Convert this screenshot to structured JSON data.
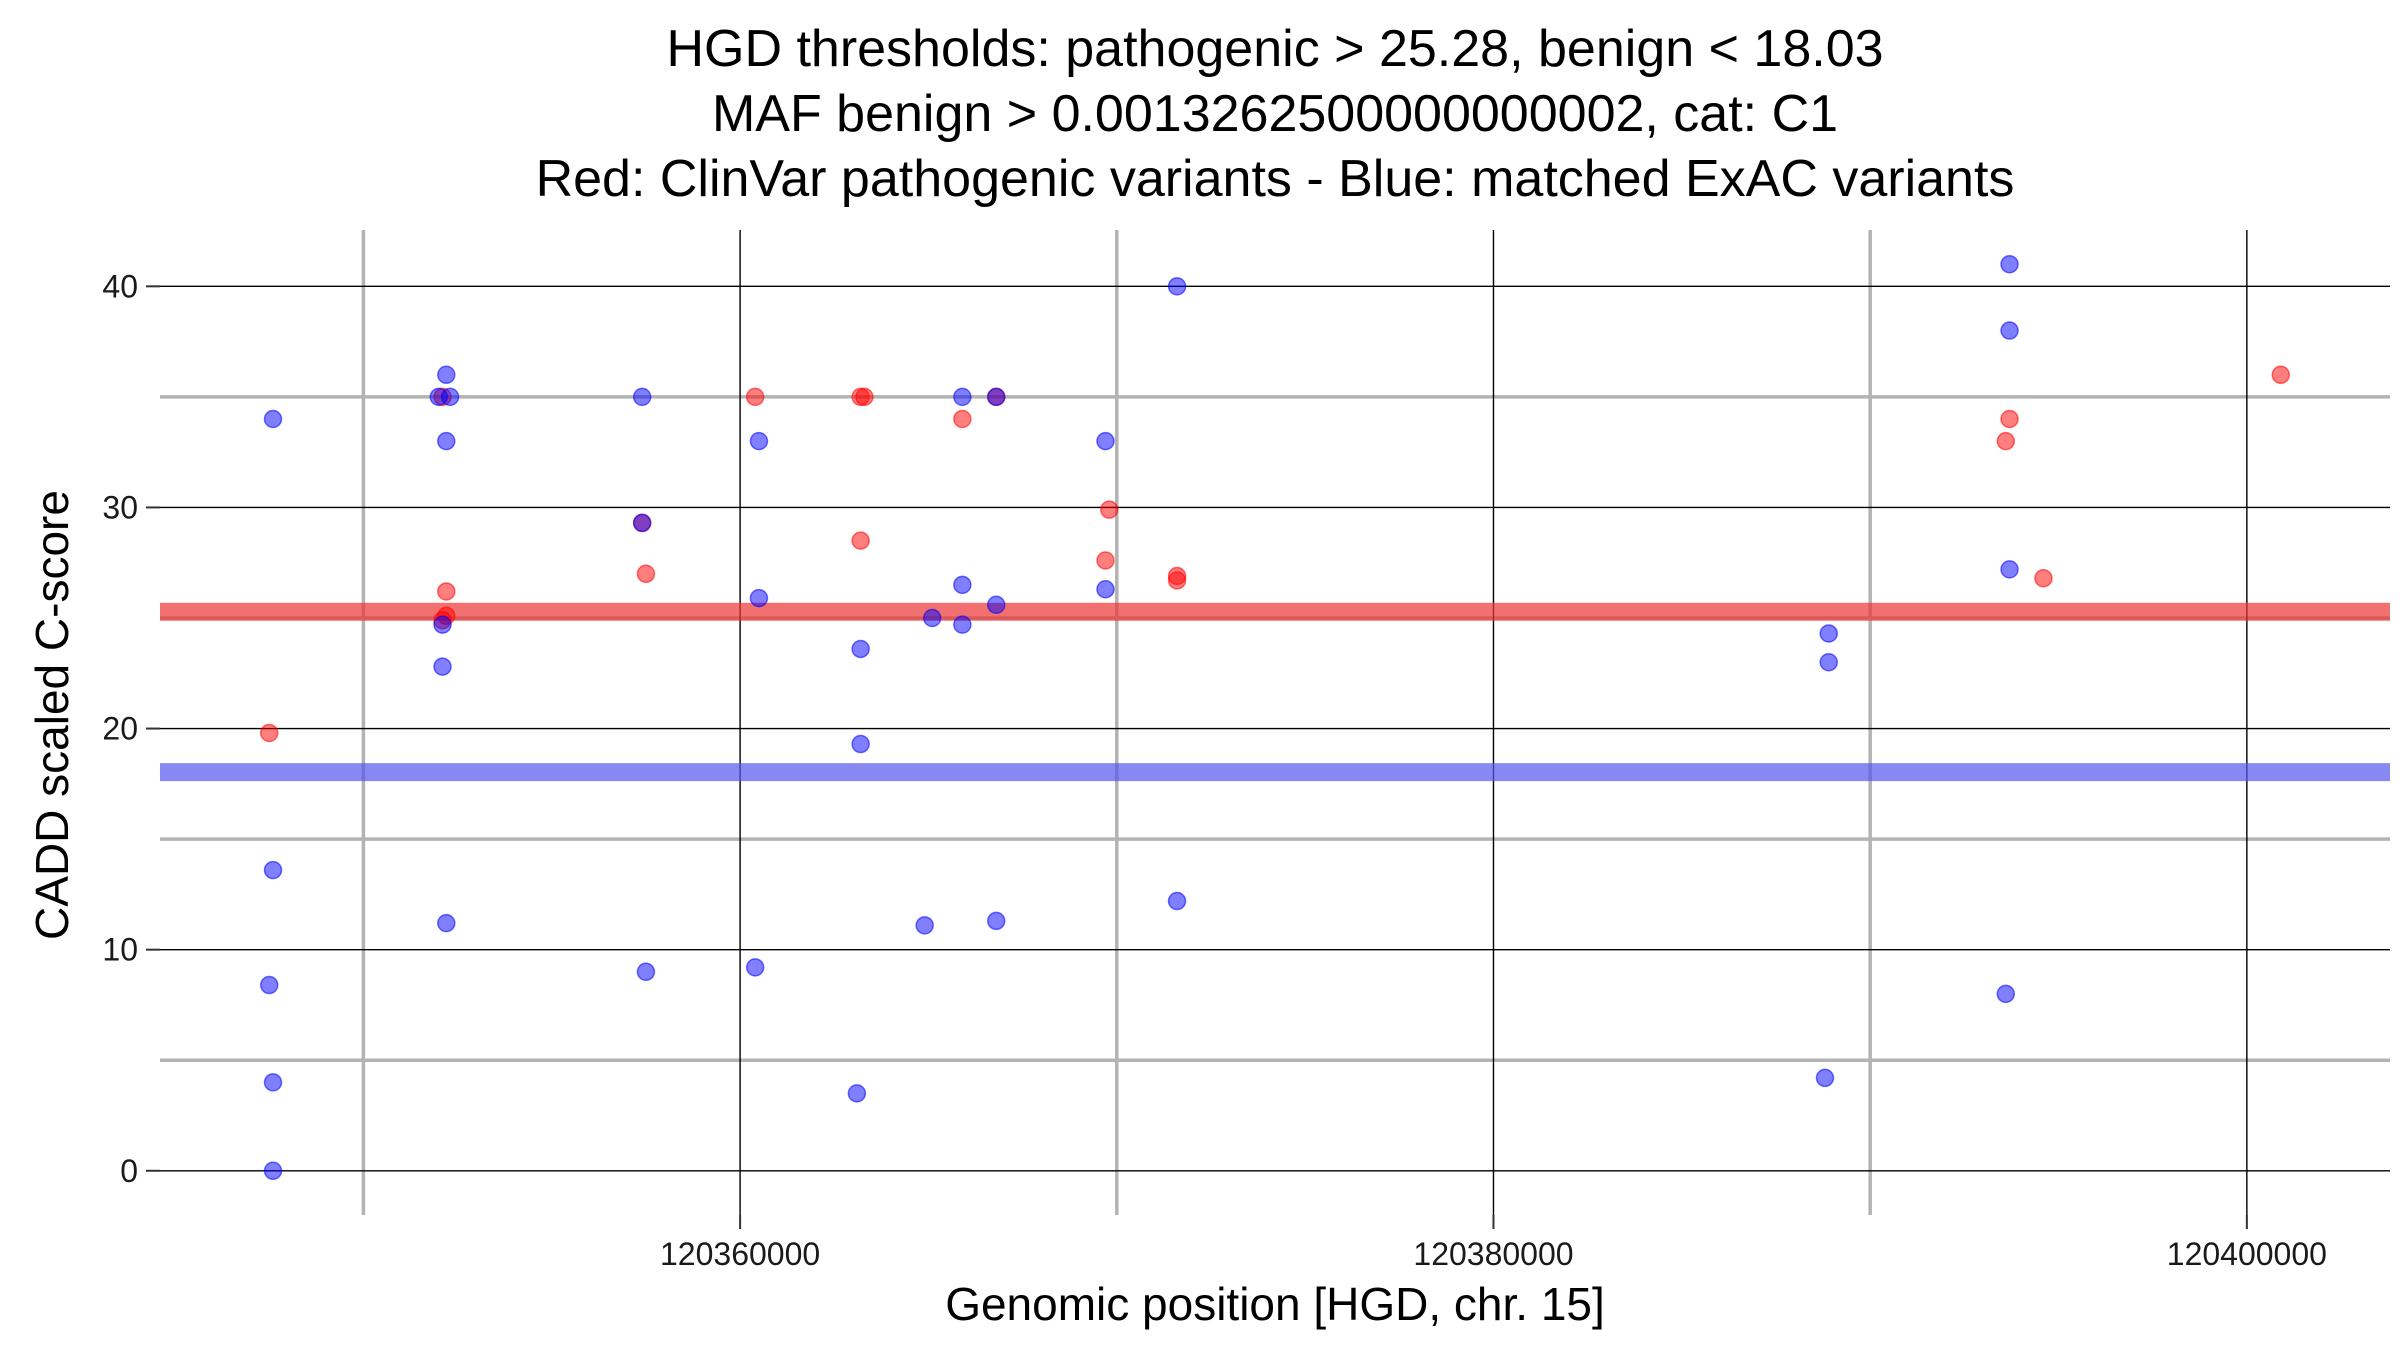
{
  "chart_data": {
    "type": "scatter",
    "title_lines": [
      "HGD thresholds: pathogenic > 25.28, benign < 18.03",
      "MAF benign > 0.0013262500000000002, cat: C1",
      "Red: ClinVar pathogenic variants - Blue: matched ExAC variants"
    ],
    "xlabel": "Genomic position [HGD, chr. 15]",
    "ylabel": "CADD scaled C-score",
    "xlim": [
      120344600,
      120403800
    ],
    "ylim": [
      -2,
      43
    ],
    "x_major_ticks": [
      120360000,
      120380000,
      120400000
    ],
    "x_minor_gridlines": [
      120350000,
      120370000,
      120390000
    ],
    "y_major_ticks": [
      0,
      10,
      20,
      30,
      40
    ],
    "y_minor_gridlines": [
      5,
      15,
      25,
      35
    ],
    "thresholds": [
      {
        "name": "pathogenic",
        "value": 25.28,
        "color": "#ee3333"
      },
      {
        "name": "benign",
        "value": 18.03,
        "color": "#5555ee"
      }
    ],
    "colors": {
      "pathogenic": "#ff0000",
      "benign": "#0000ff",
      "major_grid": "#000000",
      "minor_grid": "#b3b3b3"
    },
    "series": [
      {
        "name": "ClinVar pathogenic",
        "color": "#ff0000",
        "points": [
          [
            120347500,
            19.8
          ],
          [
            120352100,
            35.0
          ],
          [
            120352200,
            26.2
          ],
          [
            120352200,
            25.1
          ],
          [
            120352100,
            24.9
          ],
          [
            120357400,
            29.3
          ],
          [
            120357500,
            27.0
          ],
          [
            120360400,
            35.0
          ],
          [
            120363200,
            35.0
          ],
          [
            120363300,
            35.0
          ],
          [
            120363200,
            28.5
          ],
          [
            120365900,
            34.0
          ],
          [
            120366800,
            35.0
          ],
          [
            120369800,
            29.9
          ],
          [
            120369700,
            27.6
          ],
          [
            120371600,
            26.9
          ],
          [
            120371600,
            26.7
          ],
          [
            120393700,
            34.0
          ],
          [
            120393600,
            33.0
          ],
          [
            120394600,
            26.8
          ],
          [
            120400900,
            36.0
          ]
        ]
      },
      {
        "name": "matched ExAC",
        "color": "#0000ff",
        "points": [
          [
            120347600,
            34.0
          ],
          [
            120347600,
            13.6
          ],
          [
            120347500,
            8.4
          ],
          [
            120347600,
            4.0
          ],
          [
            120347600,
            0.0
          ],
          [
            120352000,
            35.0
          ],
          [
            120352200,
            36.0
          ],
          [
            120352300,
            35.0
          ],
          [
            120352200,
            33.0
          ],
          [
            120352100,
            24.7
          ],
          [
            120352100,
            22.8
          ],
          [
            120352200,
            11.2
          ],
          [
            120357400,
            35.0
          ],
          [
            120357400,
            29.3
          ],
          [
            120357500,
            9.0
          ],
          [
            120360500,
            33.0
          ],
          [
            120360500,
            25.9
          ],
          [
            120360400,
            9.2
          ],
          [
            120363200,
            23.6
          ],
          [
            120363200,
            19.3
          ],
          [
            120363100,
            3.5
          ],
          [
            120365100,
            25.0
          ],
          [
            120364900,
            11.1
          ],
          [
            120365900,
            35.0
          ],
          [
            120365900,
            26.5
          ],
          [
            120365900,
            24.7
          ],
          [
            120366800,
            35.0
          ],
          [
            120366800,
            25.6
          ],
          [
            120366800,
            11.3
          ],
          [
            120369700,
            33.0
          ],
          [
            120369700,
            26.3
          ],
          [
            120371600,
            40.0
          ],
          [
            120371600,
            12.2
          ],
          [
            120388900,
            24.3
          ],
          [
            120388900,
            23.0
          ],
          [
            120388800,
            4.2
          ],
          [
            120393700,
            41.0
          ],
          [
            120393700,
            38.0
          ],
          [
            120393700,
            27.2
          ],
          [
            120393600,
            8.0
          ]
        ]
      }
    ]
  }
}
